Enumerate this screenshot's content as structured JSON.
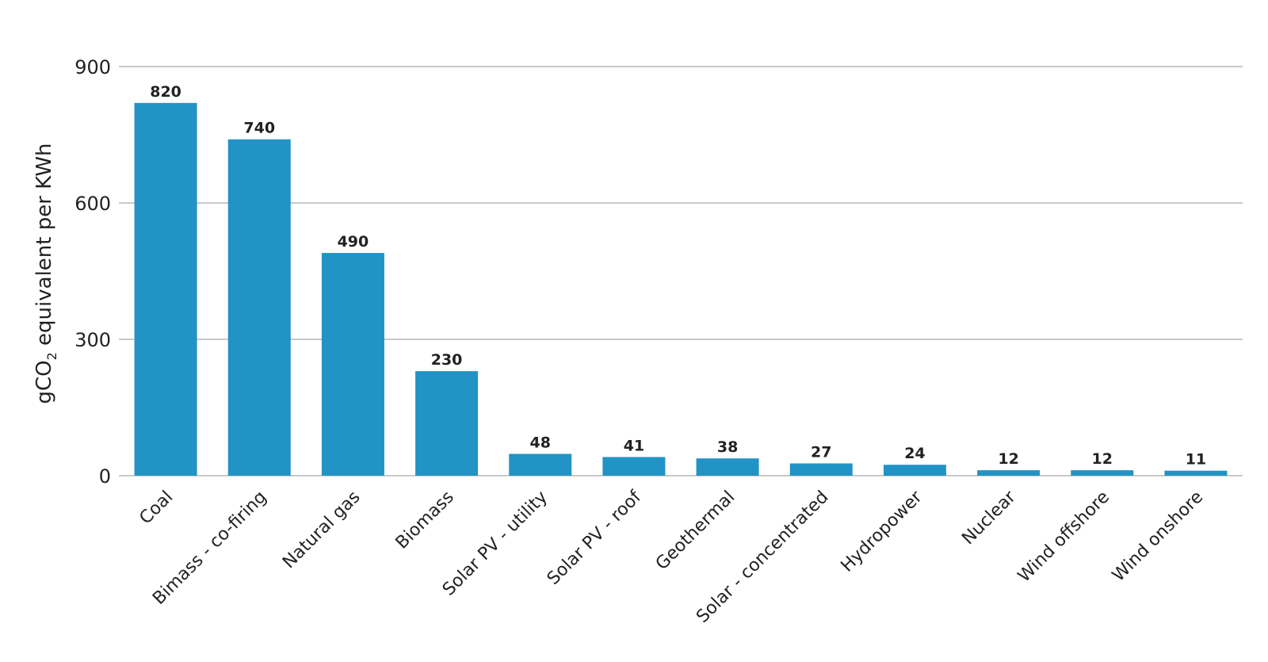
{
  "chart_data": {
    "type": "bar",
    "title": "",
    "xlabel": "",
    "ylabel": "gCO2 equivalent per KWh",
    "ylabel_parts": {
      "pre": "gCO",
      "sub": "2",
      "post": " equivalent per KWh"
    },
    "ylim": [
      0,
      900
    ],
    "yticks": [
      0,
      300,
      600,
      900
    ],
    "grid": true,
    "bar_color": "#2193c5",
    "categories": [
      "Coal",
      "Bimass - co-firing",
      "Natural gas",
      "Biomass",
      "Solar PV - utility",
      "Solar PV - roof",
      "Geothermal",
      "Solar - concentrated",
      "Hydropower",
      "Nuclear",
      "Wind offshore",
      "Wind onshore"
    ],
    "values": [
      820,
      740,
      490,
      230,
      48,
      41,
      38,
      27,
      24,
      12,
      12,
      11
    ]
  }
}
